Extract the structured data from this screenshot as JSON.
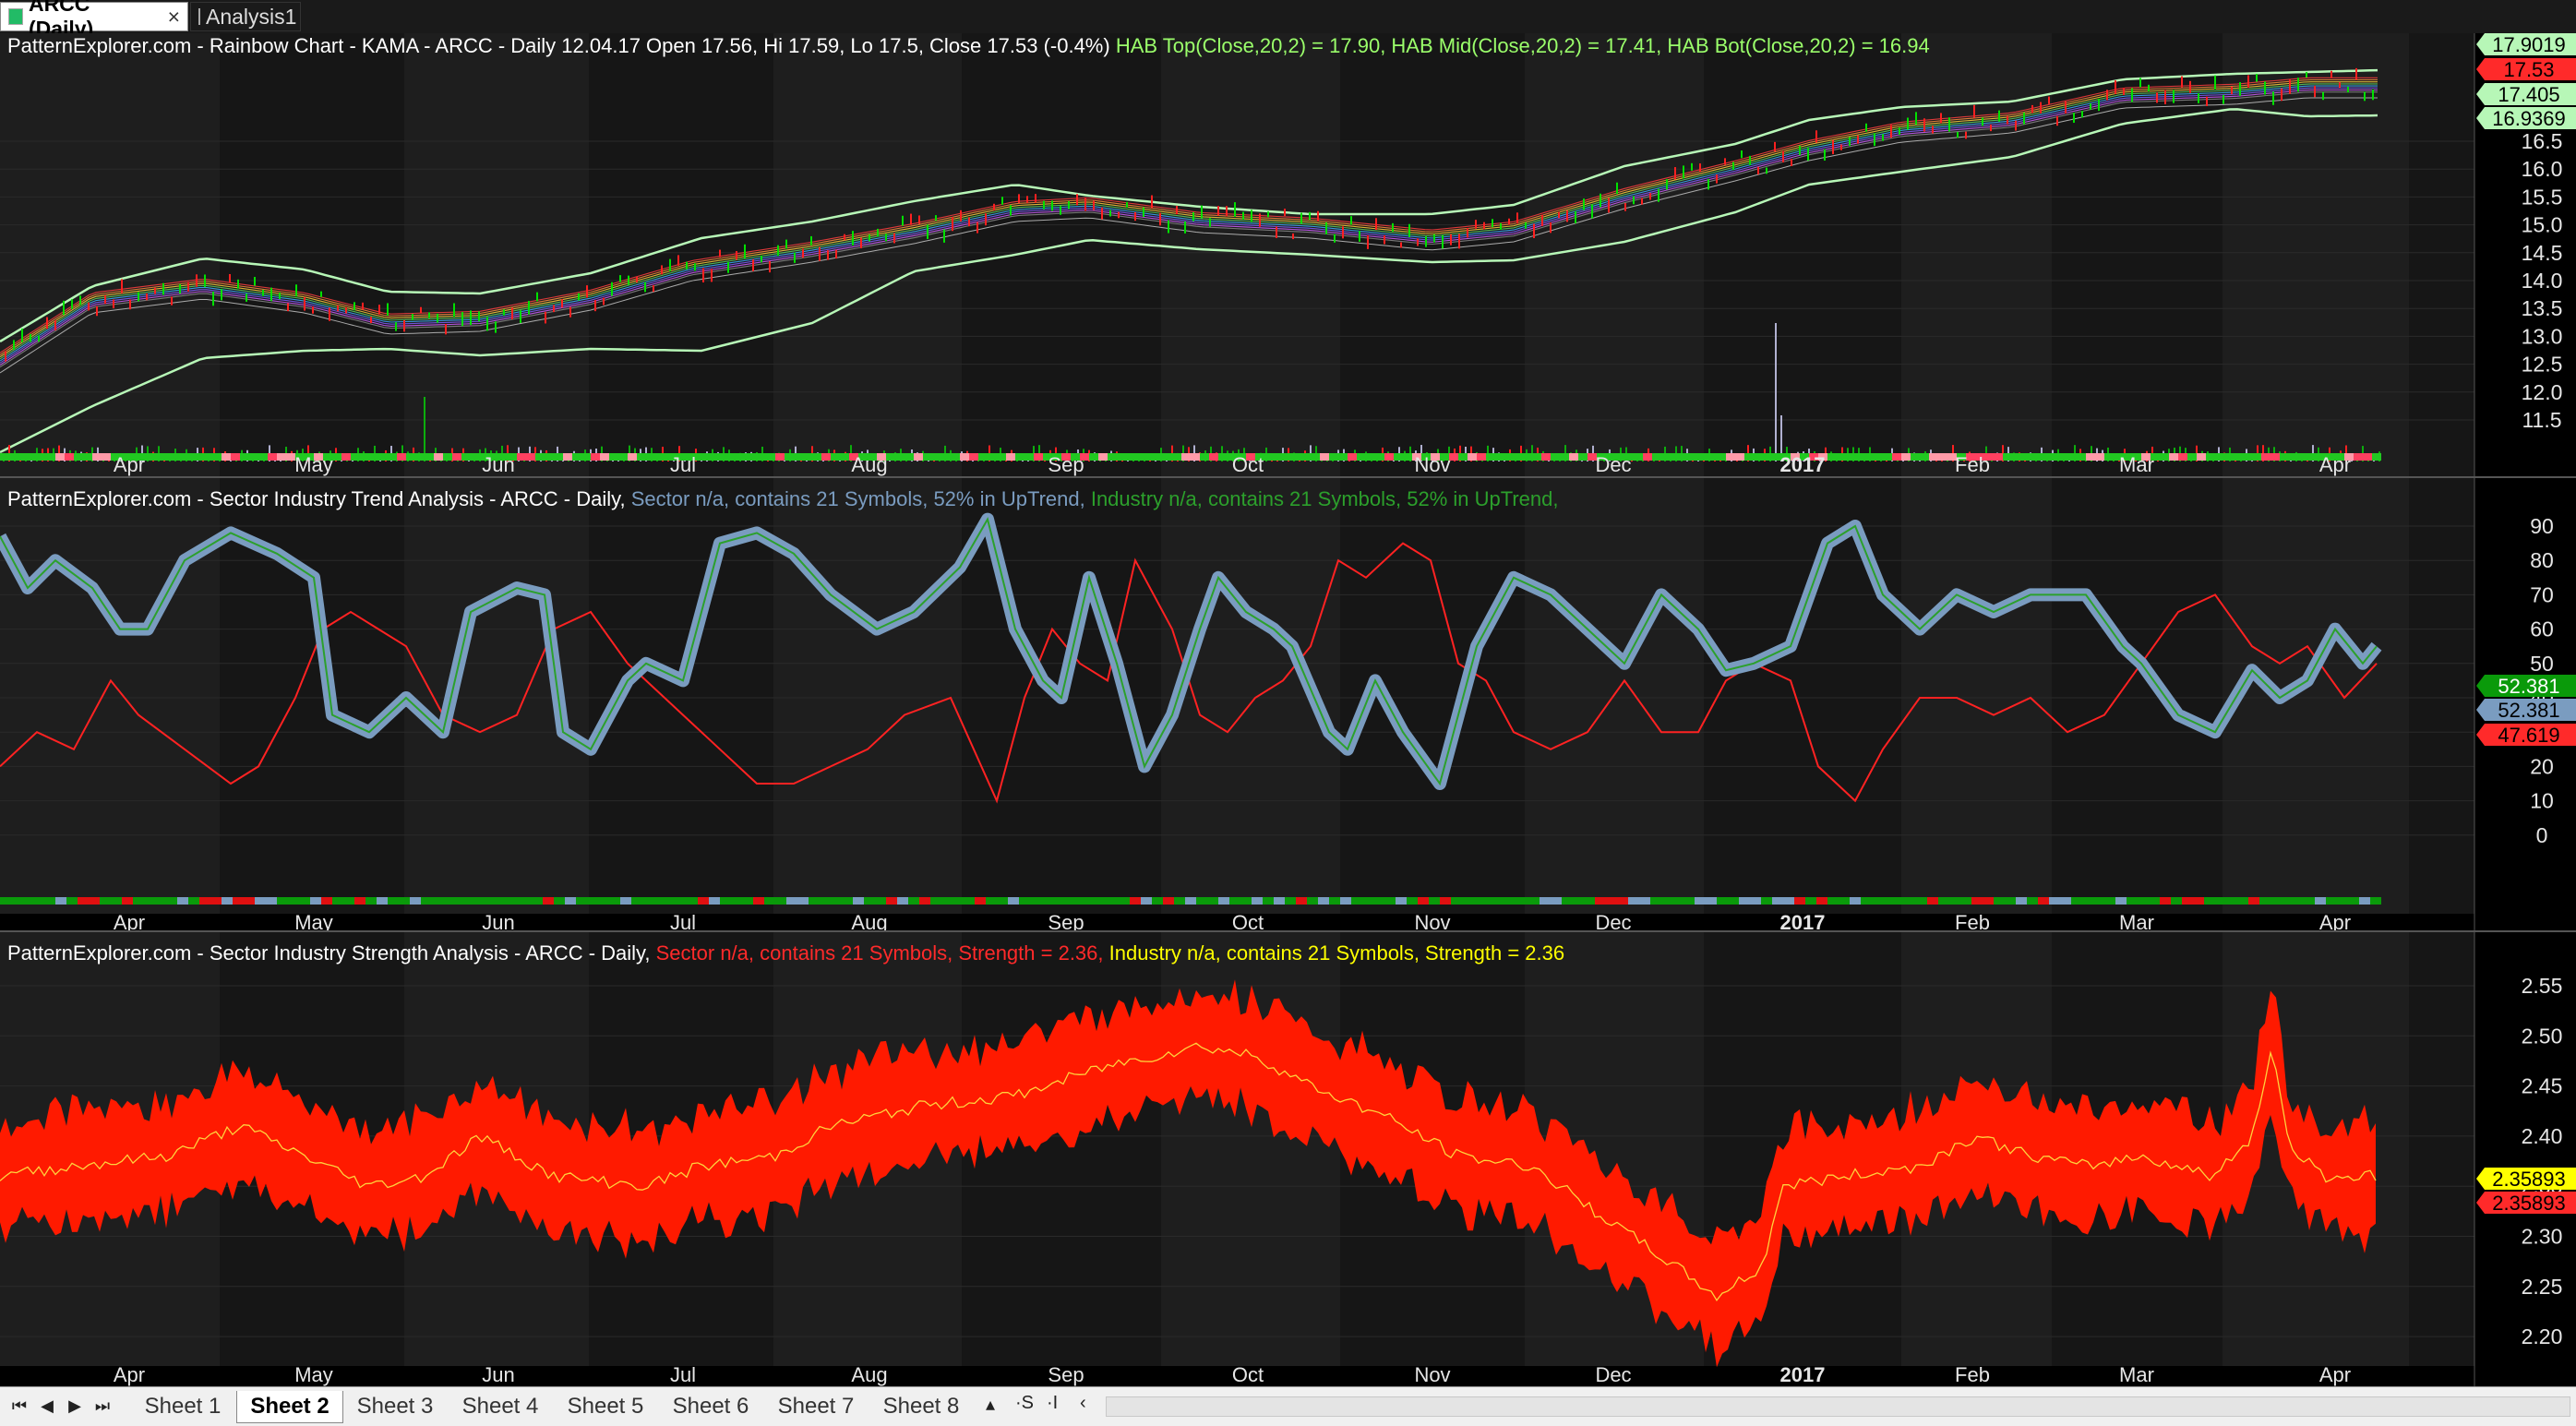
{
  "tabs": [
    {
      "label": "ARCC (Daily)",
      "close": "×",
      "active": true
    },
    {
      "label": "Analysis1",
      "active": false
    }
  ],
  "panes": [
    {
      "title_prefix": "PatternExplorer.com - Rainbow Chart  - KAMA - ARCC - Daily 12.04.17 Open 17.56, Hi 17.59, Lo 17.5, Close 17.53 (-0.4%)",
      "title_green": " HAB Top(Close,20,2) = 17.90, HAB Mid(Close,20,2) = 17.41, HAB Bot(Close,20,2) = 16.94",
      "y_ticks": [
        "16.5",
        "16.0",
        "15.5",
        "15.0",
        "14.5",
        "14.0",
        "13.5",
        "13.0",
        "12.5",
        "12.0",
        "11.5"
      ],
      "badges": [
        {
          "text": "17.9019",
          "color": "#b7f7b7",
          "fg": "#000"
        },
        {
          "text": "17.53",
          "color": "#ff2a2a",
          "fg": "#000"
        },
        {
          "text": "17.405",
          "color": "#b7f7b7",
          "fg": "#000"
        },
        {
          "text": "16.9369",
          "color": "#b7f7b7",
          "fg": "#000"
        }
      ]
    },
    {
      "title_prefix": "PatternExplorer.com - Sector Industry Trend Analysis - ARCC - Daily,",
      "title_blue": " Sector n/a, contains 21 Symbols, 52% in UpTrend,",
      "title_green": " Industry n/a, contains 21 Symbols, 52% in UpTrend,",
      "y_ticks": [
        "90",
        "80",
        "70",
        "60",
        "50",
        "40",
        "30",
        "20",
        "10",
        "0"
      ],
      "badges": [
        {
          "text": "52.381",
          "color": "#0a9a0a",
          "fg": "#fff"
        },
        {
          "text": "52.381",
          "color": "#7a9cc0",
          "fg": "#000"
        },
        {
          "text": "47.619",
          "color": "#ff2a2a",
          "fg": "#000"
        }
      ]
    },
    {
      "title_prefix": "PatternExplorer.com - Sector Industry Strength Analysis - ARCC - Daily,",
      "title_red": " Sector n/a, contains 21 Symbols, Strength = 2.36,",
      "title_yellow": " Industry n/a, contains 21 Symbols, Strength = 2.36",
      "y_ticks": [
        "2.55",
        "2.50",
        "2.45",
        "2.40",
        "2.35",
        "2.30",
        "2.25",
        "2.20"
      ],
      "badges": [
        {
          "text": "2.35893",
          "color": "#ffff00",
          "fg": "#000"
        },
        {
          "text": "2.35893",
          "color": "#ff2a2a",
          "fg": "#000"
        }
      ]
    }
  ],
  "x_labels": [
    "Apr",
    "May",
    "Jun",
    "Jul",
    "Aug",
    "Sep",
    "Oct",
    "Nov",
    "Dec",
    "2017",
    "Feb",
    "Mar",
    "Apr"
  ],
  "sheets": [
    "Sheet 1",
    "Sheet 2",
    "Sheet 3",
    "Sheet 4",
    "Sheet 5",
    "Sheet 6",
    "Sheet 7",
    "Sheet 8"
  ],
  "active_sheet": "Sheet 2",
  "nav_buttons": [
    "⏮",
    "◀",
    "▶",
    "⏭"
  ],
  "tools": [
    "▴",
    "·S",
    "·I",
    "‹"
  ],
  "colors": {
    "rainbow_band": "#b7f7b7",
    "trend_blue": "#7a9cc0",
    "trend_green": "#2ca02c",
    "trend_red": "#ff2222",
    "strength_red": "#ff1a00",
    "strength_yellow": "#ffd23c"
  }
}
